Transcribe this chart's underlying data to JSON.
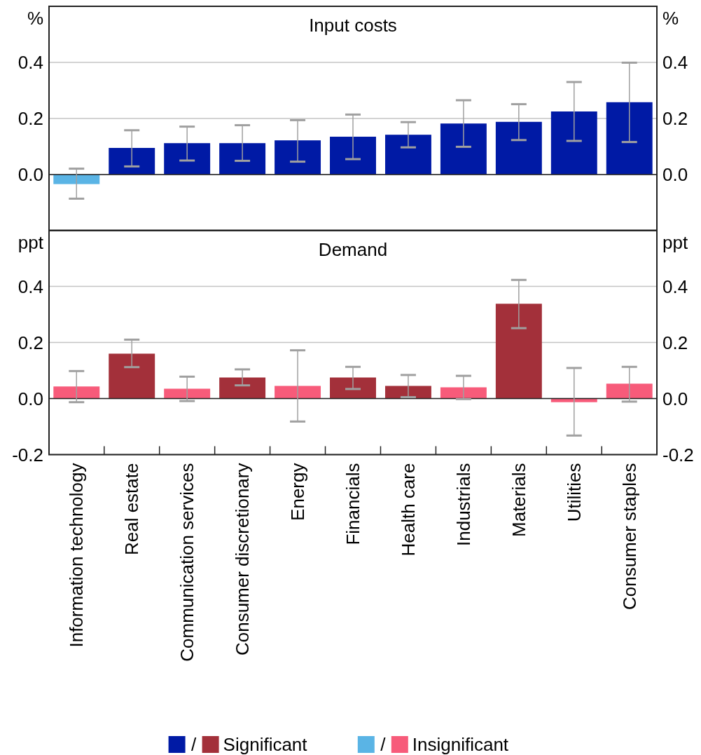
{
  "chart_data": [
    {
      "type": "bar",
      "title": "Input costs",
      "ylabel": "%",
      "y2label": "%",
      "categories": [
        null,
        null,
        null,
        null,
        null,
        null,
        null,
        null,
        null,
        null,
        null
      ],
      "series": [
        {
          "color": "#001aa5",
          "values": [
            null,
            0.095,
            0.112,
            0.112,
            0.122,
            0.135,
            0.142,
            0.182,
            0.188,
            0.225,
            0.258
          ],
          "errors": [
            null,
            [
              0.029,
              0.158
            ],
            [
              0.05,
              0.171
            ],
            [
              0.049,
              0.176
            ],
            [
              0.046,
              0.194
            ],
            [
              0.055,
              0.214
            ],
            [
              0.097,
              0.187
            ],
            [
              0.099,
              0.265
            ],
            [
              0.123,
              0.251
            ],
            [
              0.12,
              0.33
            ],
            [
              0.116,
              0.399
            ]
          ]
        },
        {
          "color": "#5ab4e5",
          "values": [
            -0.034,
            null,
            null,
            null,
            null,
            null,
            null,
            null,
            null,
            null,
            null
          ],
          "errors": [
            [
              -0.086,
              0.021
            ],
            null,
            null,
            null,
            null,
            null,
            null,
            null,
            null,
            null,
            null
          ]
        }
      ],
      "ylim": [
        -0.2,
        0.6
      ],
      "yticks": [
        {
          "value": 0,
          "label": "0.0"
        },
        0.2,
        0.4
      ],
      "y2lim": [
        -0.2,
        0.6
      ],
      "y2ticks": [
        {
          "value": 0,
          "label": "0.0"
        },
        0.2,
        0.4
      ],
      "grid": "y",
      "tick_labels": "y"
    },
    {
      "type": "bar",
      "title": "Demand",
      "ylabel": "ppt",
      "y2label": "ppt",
      "categories": [
        "Information technology",
        "Real estate",
        "Communication services",
        "Consumer discretionary",
        "Energy",
        "Financials",
        "Health care",
        "Industrials",
        "Materials",
        "Utilities",
        "Consumer staples"
      ],
      "series": [
        {
          "name": "Significant",
          "color": "#a3303a",
          "values": [
            null,
            0.16,
            null,
            0.075,
            null,
            0.075,
            0.045,
            null,
            0.338,
            null,
            null
          ],
          "errors": [
            null,
            [
              0.112,
              0.21
            ],
            null,
            [
              0.047,
              0.104
            ],
            null,
            [
              0.034,
              0.113
            ],
            [
              0.005,
              0.084
            ],
            null,
            [
              0.251,
              0.423
            ],
            null,
            null
          ]
        },
        {
          "name": "Insignificant",
          "color": "#f75b7a",
          "values": [
            0.043,
            null,
            0.035,
            null,
            0.045,
            null,
            null,
            0.04,
            null,
            -0.013,
            0.053
          ],
          "errors": [
            [
              -0.013,
              0.098
            ],
            null,
            [
              -0.009,
              0.078
            ],
            null,
            [
              -0.082,
              0.172
            ],
            null,
            null,
            [
              -0.002,
              0.081
            ],
            null,
            [
              -0.132,
              0.109
            ],
            [
              -0.011,
              0.113
            ]
          ]
        }
      ],
      "ylim": [
        -0.2,
        0.6
      ],
      "yticks": [
        -0.2,
        {
          "value": 0,
          "label": "0.0"
        },
        0.2,
        0.4
      ],
      "y2lim": [
        -0.2,
        0.6
      ],
      "y2ticks": [
        -0.2,
        {
          "value": 0,
          "label": "0.0"
        },
        0.2,
        0.4
      ],
      "grid": "y",
      "legend": "bottom",
      "annotations": [
        "/",
        "/"
      ]
    }
  ]
}
